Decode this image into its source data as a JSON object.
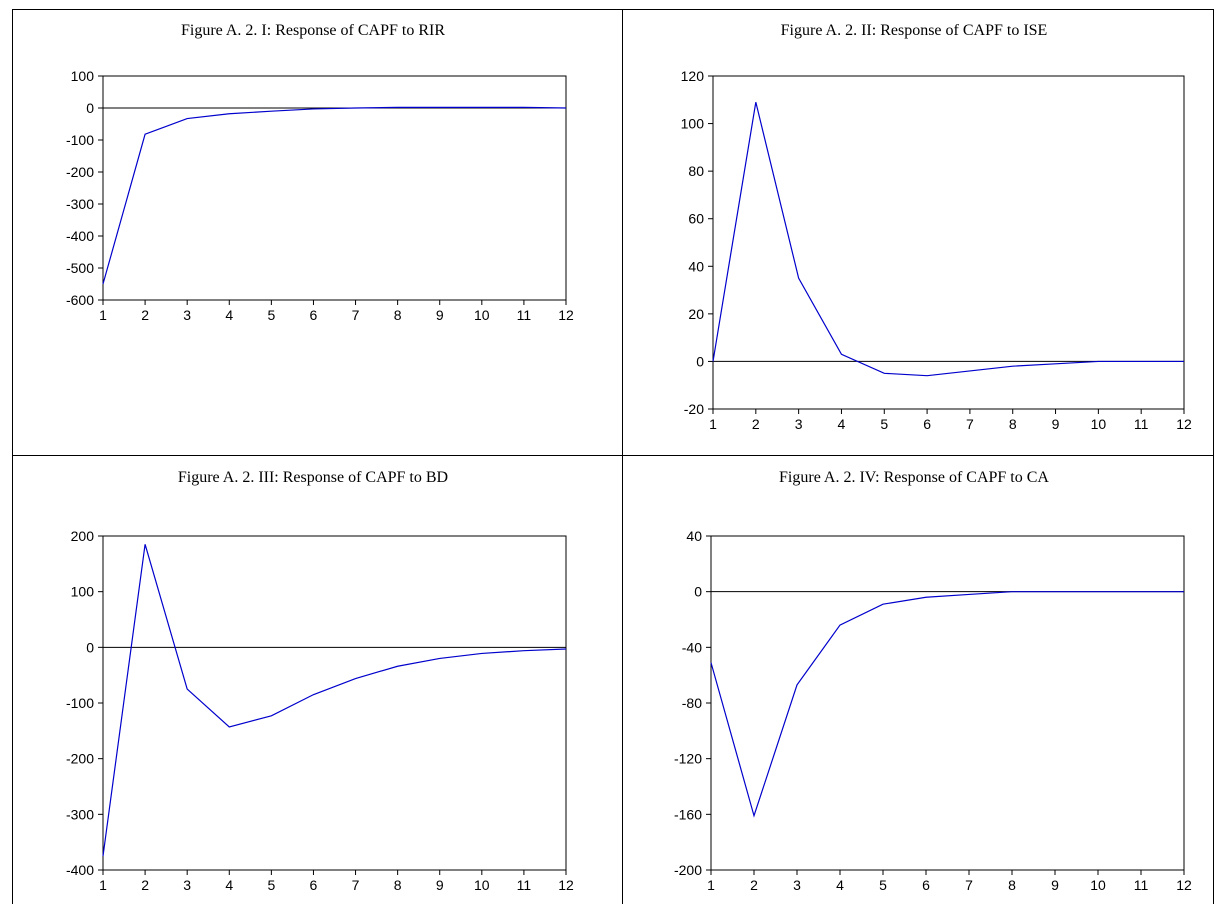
{
  "colors": {
    "series": "#0000cc",
    "axis": "#000000",
    "zero_line": "#000000",
    "background": "#ffffff"
  },
  "chart_data": [
    {
      "type": "line",
      "title": "Figure A. 2. I: Response of CAPF to RIR",
      "xlabel": "",
      "ylabel": "",
      "x": [
        1,
        2,
        3,
        4,
        5,
        6,
        7,
        8,
        9,
        10,
        11,
        12
      ],
      "ylim": [
        -600,
        100
      ],
      "yticks": [
        100,
        0,
        -100,
        -200,
        -300,
        -400,
        -500,
        -600
      ],
      "series": [
        {
          "values": [
            -550,
            -82,
            -33,
            -18,
            -10,
            -3,
            0,
            2,
            2,
            2,
            2,
            0
          ]
        }
      ]
    },
    {
      "type": "line",
      "title": "Figure A. 2. II: Response of CAPF to ISE",
      "xlabel": "",
      "ylabel": "",
      "x": [
        1,
        2,
        3,
        4,
        5,
        6,
        7,
        8,
        9,
        10,
        11,
        12
      ],
      "ylim": [
        -20,
        120
      ],
      "yticks": [
        120,
        100,
        80,
        60,
        40,
        20,
        0,
        -20
      ],
      "series": [
        {
          "values": [
            0,
            109,
            35,
            3,
            -5,
            -6,
            -4,
            -2,
            -1,
            0,
            0,
            0
          ]
        }
      ]
    },
    {
      "type": "line",
      "title": "Figure A. 2. III: Response of CAPF to BD",
      "xlabel": "",
      "ylabel": "",
      "x": [
        1,
        2,
        3,
        4,
        5,
        6,
        7,
        8,
        9,
        10,
        11,
        12
      ],
      "ylim": [
        -400,
        200
      ],
      "yticks": [
        200,
        100,
        0,
        -100,
        -200,
        -300,
        -400
      ],
      "series": [
        {
          "values": [
            -375,
            185,
            -75,
            -143,
            -123,
            -85,
            -56,
            -34,
            -20,
            -11,
            -6,
            -3
          ]
        }
      ]
    },
    {
      "type": "line",
      "title": "Figure A. 2. IV: Response of CAPF to CA",
      "xlabel": "",
      "ylabel": "",
      "x": [
        1,
        2,
        3,
        4,
        5,
        6,
        7,
        8,
        9,
        10,
        11,
        12
      ],
      "ylim": [
        -200,
        40
      ],
      "yticks": [
        40,
        0,
        -40,
        -80,
        -120,
        -160,
        -200
      ],
      "series": [
        {
          "values": [
            -51,
            -161,
            -67,
            -24,
            -9,
            -4,
            -2,
            0,
            0,
            0,
            0,
            0
          ]
        }
      ]
    }
  ]
}
